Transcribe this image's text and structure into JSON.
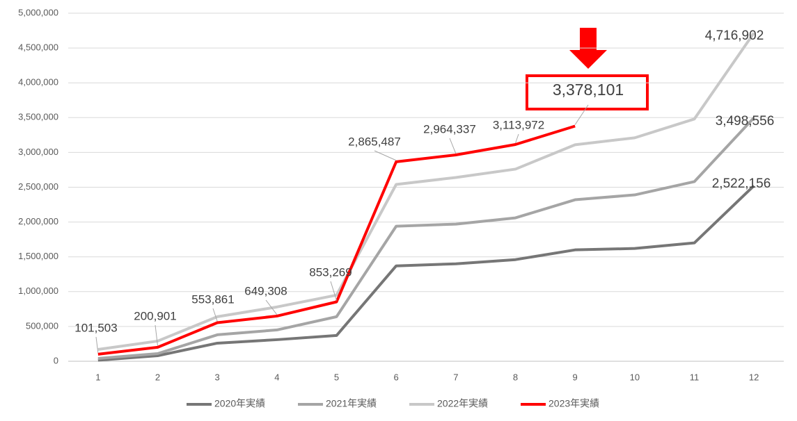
{
  "chart_data": {
    "type": "line",
    "categories": [
      "1",
      "2",
      "3",
      "4",
      "5",
      "6",
      "7",
      "8",
      "9",
      "10",
      "11",
      "12"
    ],
    "ylim": [
      0,
      5000000
    ],
    "yticks": [
      {
        "value": 0,
        "label": "0"
      },
      {
        "value": 500000,
        "label": "500,000"
      },
      {
        "value": 1000000,
        "label": "1,000,000"
      },
      {
        "value": 1500000,
        "label": "1,500,000"
      },
      {
        "value": 2000000,
        "label": "2,000,000"
      },
      {
        "value": 2500000,
        "label": "2,500,000"
      },
      {
        "value": 3000000,
        "label": "3,000,000"
      },
      {
        "value": 3500000,
        "label": "3,500,000"
      },
      {
        "value": 4000000,
        "label": "4,000,000"
      },
      {
        "value": 4500000,
        "label": "4,500,000"
      },
      {
        "value": 5000000,
        "label": "5,000,000"
      }
    ],
    "grid": true,
    "legend": "bottom",
    "series": [
      {
        "name": "2020年実績",
        "color": "#767676",
        "values": [
          15000,
          80000,
          260000,
          310000,
          370000,
          1370000,
          1400000,
          1460000,
          1600000,
          1620000,
          1700000,
          2522156
        ],
        "value_labels": [
          null,
          null,
          null,
          null,
          null,
          null,
          null,
          null,
          null,
          null,
          null,
          "2,522,156"
        ]
      },
      {
        "name": "2021年実績",
        "color": "#a5a5a5",
        "values": [
          40000,
          110000,
          380000,
          450000,
          640000,
          1940000,
          1970000,
          2060000,
          2320000,
          2390000,
          2580000,
          3498556
        ],
        "value_labels": [
          null,
          null,
          null,
          null,
          null,
          null,
          null,
          null,
          null,
          null,
          null,
          "3,498,556"
        ]
      },
      {
        "name": "2022年実績",
        "color": "#c8c8c8",
        "values": [
          170000,
          290000,
          640000,
          780000,
          950000,
          2540000,
          2640000,
          2760000,
          3110000,
          3210000,
          3480000,
          4716902
        ],
        "value_labels": [
          null,
          null,
          null,
          null,
          null,
          null,
          null,
          null,
          null,
          null,
          null,
          "4,716,902"
        ]
      },
      {
        "name": "2023年実績",
        "color": "#ff0000",
        "values": [
          101503,
          200901,
          553861,
          649308,
          853269,
          2865487,
          2964337,
          3113972,
          3378101,
          null,
          null,
          null
        ],
        "value_labels": [
          "101,503",
          "200,901",
          "553,861",
          "649,308",
          "853,269",
          "2,865,487",
          "2,964,337",
          "3,113,972",
          "3,378,101",
          null,
          null,
          null
        ]
      }
    ]
  }
}
